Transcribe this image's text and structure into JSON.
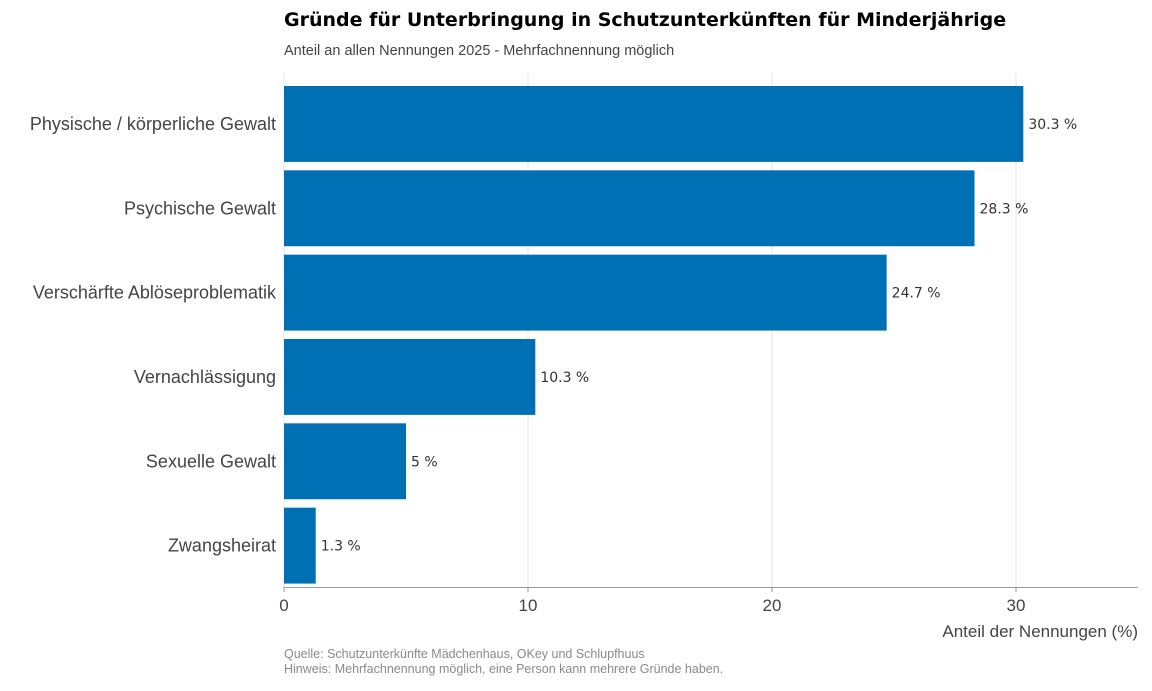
{
  "chart_data": {
    "type": "bar",
    "orientation": "horizontal",
    "title": "Gründe für Unterbringung in Schutzunterkünften für Minderjährige",
    "subtitle": "Anteil an allen Nennungen 2025 - Mehrfachnennung möglich",
    "xlabel": "Anteil der Nennungen (%)",
    "ylabel": "",
    "categories": [
      "Physische / körperliche Gewalt",
      "Psychische Gewalt",
      "Verschärfte Ablöseproblematik",
      "Vernachlässigung",
      "Sexuelle Gewalt",
      "Zwangsheirat"
    ],
    "values": [
      30.3,
      28.3,
      24.7,
      10.3,
      5,
      1.3
    ],
    "value_labels": [
      "30.3 %",
      "28.3 %",
      "24.7 %",
      "10.3 %",
      "5 %",
      "1.3 %"
    ],
    "xlim": [
      0,
      35
    ],
    "xticks": [
      0,
      10,
      20,
      30
    ],
    "grid": "vertical",
    "bar_color": "#0070b5"
  },
  "footer": {
    "source": "Quelle: Schutzunterkünfte Mädchenhaus, OKey und Schlupfhuus",
    "note": "Hinweis: Mehrfachnennung möglich, eine Person kann mehrere Gründe haben."
  }
}
